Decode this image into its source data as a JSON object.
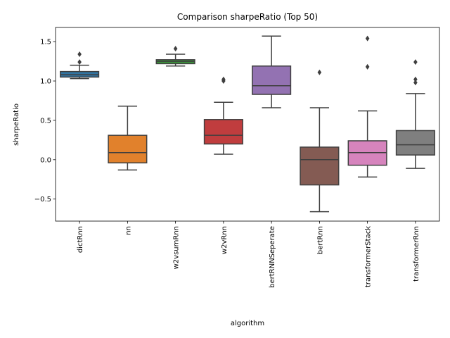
{
  "chart_data": {
    "type": "box",
    "title": "Comparison sharpeRatio (Top 50)",
    "xlabel": "algorithm",
    "ylabel": "sharpeRatio",
    "ylim": [
      -0.78,
      1.68
    ],
    "yticks": [
      -0.5,
      0.0,
      0.5,
      1.0,
      1.5
    ],
    "ytick_labels": [
      "−0.5",
      "0.0",
      "0.5",
      "1.0",
      "1.5"
    ],
    "grid": false,
    "categories": [
      "dictRnn",
      "nn",
      "w2vsumRnn",
      "w2vRnn",
      "bertRNNSeperate",
      "bertRnn",
      "transformerStack",
      "transformerRnn"
    ],
    "series": [
      {
        "category": "dictRnn",
        "color": "#3274a1",
        "whisker_low": 1.03,
        "q1": 1.05,
        "median": 1.08,
        "q3": 1.12,
        "whisker_high": 1.2,
        "outliers": [
          1.24,
          1.34
        ]
      },
      {
        "category": "nn",
        "color": "#e1812c",
        "whisker_low": -0.13,
        "q1": -0.04,
        "median": 0.09,
        "q3": 0.31,
        "whisker_high": 0.68,
        "outliers": []
      },
      {
        "category": "w2vsumRnn",
        "color": "#3a923a",
        "whisker_low": 1.19,
        "q1": 1.22,
        "median": 1.25,
        "q3": 1.27,
        "whisker_high": 1.34,
        "outliers": [
          1.41
        ]
      },
      {
        "category": "w2vRnn",
        "color": "#c03d3e",
        "whisker_low": 0.07,
        "q1": 0.2,
        "median": 0.31,
        "q3": 0.51,
        "whisker_high": 0.73,
        "outliers": [
          1.0,
          1.02
        ]
      },
      {
        "category": "bertRNNSeperate",
        "color": "#9372b2",
        "whisker_low": 0.66,
        "q1": 0.83,
        "median": 0.94,
        "q3": 1.19,
        "whisker_high": 1.57,
        "outliers": []
      },
      {
        "category": "bertRnn",
        "color": "#845b53",
        "whisker_low": -0.66,
        "q1": -0.32,
        "median": 0.0,
        "q3": 0.16,
        "whisker_high": 0.66,
        "outliers": [
          1.11
        ]
      },
      {
        "category": "transformerStack",
        "color": "#d684bd",
        "whisker_low": -0.22,
        "q1": -0.07,
        "median": 0.09,
        "q3": 0.24,
        "whisker_high": 0.62,
        "outliers": [
          1.18,
          1.54
        ]
      },
      {
        "category": "transformerRnn",
        "color": "#7f7f7f",
        "whisker_low": -0.11,
        "q1": 0.06,
        "median": 0.19,
        "q3": 0.37,
        "whisker_high": 0.84,
        "outliers": [
          0.98,
          1.02,
          1.24
        ]
      }
    ]
  }
}
